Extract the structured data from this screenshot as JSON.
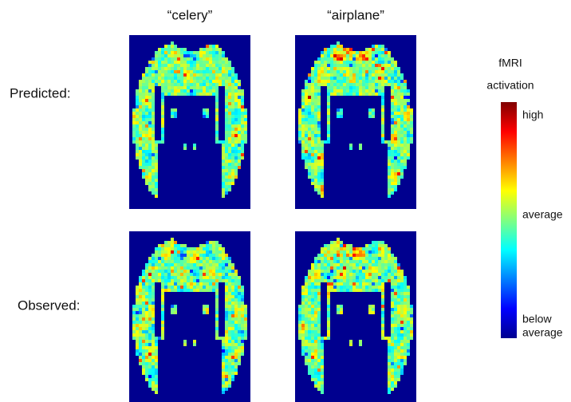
{
  "columns": [
    "“celery”",
    "“airplane”"
  ],
  "rows": [
    "Predicted:",
    "Observed:"
  ],
  "colorbar": {
    "title_lines": [
      "fMRI",
      "activation"
    ],
    "high": "high",
    "average": "average",
    "below_lines": [
      "below",
      "average"
    ]
  }
}
